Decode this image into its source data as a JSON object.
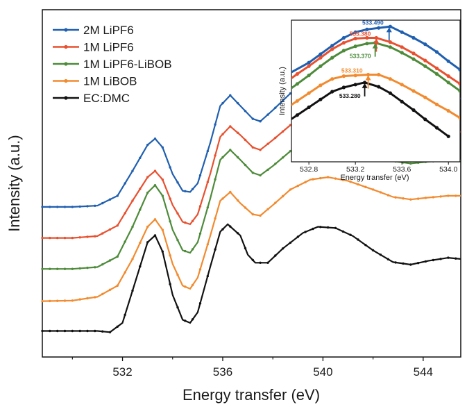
{
  "colors": {
    "2M LiPF6": "#1f5fb0",
    "1M LiPF6": "#e8502f",
    "1M LiPF6-LiBOB": "#4d8b3a",
    "1M LiBOB": "#f28a2e",
    "EC:DMC": "#111111"
  },
  "chart_data": [
    {
      "type": "line",
      "title": "",
      "xlabel": "Energy transfer (eV)",
      "ylabel": "Intensity (a.u.)",
      "xlim": [
        528.8,
        545.5
      ],
      "ylim": [
        0,
        5.6
      ],
      "x_ticks": [
        532,
        536,
        540,
        544
      ],
      "x_tick_labels": [
        "532",
        "536",
        "540",
        "544"
      ],
      "y_tick_labels": [],
      "grid": false,
      "legend": "top-left",
      "series": [
        {
          "name": "2M LiPF6",
          "points": [
            [
              528.8,
              2.42
            ],
            [
              530,
              2.42
            ],
            [
              531,
              2.44
            ],
            [
              531.8,
              2.6
            ],
            [
              532.4,
              3.0
            ],
            [
              533,
              3.42
            ],
            [
              533.3,
              3.52
            ],
            [
              533.6,
              3.38
            ],
            [
              534,
              2.95
            ],
            [
              534.4,
              2.68
            ],
            [
              534.7,
              2.66
            ],
            [
              535,
              2.8
            ],
            [
              535.5,
              3.45
            ],
            [
              535.9,
              4.05
            ],
            [
              536.3,
              4.22
            ],
            [
              536.7,
              4.05
            ],
            [
              537.2,
              3.84
            ],
            [
              537.5,
              3.8
            ],
            [
              538,
              3.98
            ],
            [
              538.7,
              4.25
            ],
            [
              539.5,
              4.42
            ],
            [
              540.2,
              4.48
            ],
            [
              541,
              4.42
            ],
            [
              542,
              4.27
            ],
            [
              542.8,
              4.12
            ],
            [
              543.5,
              4.06
            ],
            [
              544.2,
              4.12
            ],
            [
              545,
              4.17
            ],
            [
              545.5,
              4.17
            ]
          ]
        },
        {
          "name": "1M LiPF6",
          "points": [
            [
              528.8,
              1.92
            ],
            [
              530,
              1.92
            ],
            [
              531,
              1.95
            ],
            [
              531.8,
              2.12
            ],
            [
              532.4,
              2.52
            ],
            [
              533,
              2.9
            ],
            [
              533.3,
              3.0
            ],
            [
              533.6,
              2.86
            ],
            [
              534,
              2.45
            ],
            [
              534.4,
              2.18
            ],
            [
              534.7,
              2.14
            ],
            [
              535,
              2.3
            ],
            [
              535.5,
              2.95
            ],
            [
              535.9,
              3.55
            ],
            [
              536.3,
              3.72
            ],
            [
              536.7,
              3.58
            ],
            [
              537.2,
              3.38
            ],
            [
              537.5,
              3.34
            ],
            [
              538,
              3.5
            ],
            [
              538.7,
              3.74
            ],
            [
              539.5,
              3.9
            ],
            [
              540.2,
              3.93
            ],
            [
              541,
              3.86
            ],
            [
              542,
              3.72
            ],
            [
              542.8,
              3.6
            ],
            [
              543.5,
              3.56
            ],
            [
              544.2,
              3.6
            ],
            [
              545,
              3.63
            ],
            [
              545.5,
              3.63
            ]
          ]
        },
        {
          "name": "1M LiPF6-LiBOB",
          "points": [
            [
              528.8,
              1.42
            ],
            [
              530,
              1.42
            ],
            [
              531,
              1.45
            ],
            [
              531.8,
              1.62
            ],
            [
              532.4,
              2.1
            ],
            [
              533,
              2.65
            ],
            [
              533.3,
              2.77
            ],
            [
              533.6,
              2.6
            ],
            [
              534,
              2.05
            ],
            [
              534.4,
              1.72
            ],
            [
              534.7,
              1.68
            ],
            [
              535,
              1.85
            ],
            [
              535.5,
              2.55
            ],
            [
              535.9,
              3.18
            ],
            [
              536.3,
              3.34
            ],
            [
              536.7,
              3.18
            ],
            [
              537.2,
              2.97
            ],
            [
              537.5,
              2.93
            ],
            [
              538,
              3.08
            ],
            [
              538.7,
              3.32
            ],
            [
              539.5,
              3.47
            ],
            [
              540.2,
              3.5
            ],
            [
              541,
              3.42
            ],
            [
              542,
              3.28
            ],
            [
              542.8,
              3.16
            ],
            [
              543.5,
              3.12
            ],
            [
              544.2,
              3.15
            ],
            [
              545,
              3.17
            ],
            [
              545.5,
              3.17
            ]
          ]
        },
        {
          "name": "1M LiBOB",
          "points": [
            [
              528.8,
              0.9
            ],
            [
              530,
              0.91
            ],
            [
              531,
              0.97
            ],
            [
              531.8,
              1.15
            ],
            [
              532.4,
              1.58
            ],
            [
              533,
              2.1
            ],
            [
              533.3,
              2.22
            ],
            [
              533.6,
              2.05
            ],
            [
              534,
              1.5
            ],
            [
              534.4,
              1.15
            ],
            [
              534.7,
              1.1
            ],
            [
              535,
              1.28
            ],
            [
              535.5,
              1.95
            ],
            [
              535.9,
              2.52
            ],
            [
              536.3,
              2.66
            ],
            [
              536.7,
              2.48
            ],
            [
              537.2,
              2.3
            ],
            [
              537.5,
              2.28
            ],
            [
              538,
              2.45
            ],
            [
              538.7,
              2.7
            ],
            [
              539.5,
              2.86
            ],
            [
              540.2,
              2.9
            ],
            [
              541,
              2.84
            ],
            [
              542,
              2.7
            ],
            [
              542.8,
              2.58
            ],
            [
              543.5,
              2.54
            ],
            [
              544.2,
              2.57
            ],
            [
              545,
              2.6
            ],
            [
              545.5,
              2.6
            ]
          ]
        },
        {
          "name": "EC:DMC",
          "points": [
            [
              528.8,
              0.42
            ],
            [
              530,
              0.42
            ],
            [
              531,
              0.42
            ],
            [
              531.5,
              0.4
            ],
            [
              532,
              0.55
            ],
            [
              532.5,
              1.2
            ],
            [
              533,
              1.85
            ],
            [
              533.3,
              1.96
            ],
            [
              533.6,
              1.7
            ],
            [
              534,
              1.0
            ],
            [
              534.4,
              0.6
            ],
            [
              534.7,
              0.55
            ],
            [
              535,
              0.72
            ],
            [
              535.5,
              1.45
            ],
            [
              535.9,
              2.02
            ],
            [
              536.2,
              2.14
            ],
            [
              536.7,
              1.96
            ],
            [
              537,
              1.65
            ],
            [
              537.3,
              1.52
            ],
            [
              537.8,
              1.52
            ],
            [
              538.4,
              1.75
            ],
            [
              539.2,
              2.0
            ],
            [
              539.8,
              2.1
            ],
            [
              540.5,
              2.08
            ],
            [
              541.2,
              1.95
            ],
            [
              542,
              1.72
            ],
            [
              542.8,
              1.53
            ],
            [
              543.5,
              1.49
            ],
            [
              544.2,
              1.55
            ],
            [
              545,
              1.6
            ],
            [
              545.5,
              1.58
            ]
          ]
        }
      ]
    },
    {
      "type": "line",
      "title": "",
      "xlabel": "Energy transfer (eV)",
      "ylabel": "Intensity (a.u.)",
      "xlim": [
        532.65,
        534.1
      ],
      "ylim": [
        0,
        10
      ],
      "x_ticks": [
        532.8,
        533.2,
        533.6,
        534.0
      ],
      "x_tick_labels": [
        "532.8",
        "533.2",
        "533.6",
        "534.0"
      ],
      "grid": false,
      "series": [
        {
          "name": "2M LiPF6",
          "points": [
            [
              532.6,
              6.1
            ],
            [
              532.8,
              7.0
            ],
            [
              532.9,
              7.6
            ],
            [
              533.0,
              8.2
            ],
            [
              533.1,
              8.75
            ],
            [
              533.2,
              9.15
            ],
            [
              533.3,
              9.35
            ],
            [
              533.4,
              9.45
            ],
            [
              533.5,
              9.55
            ],
            [
              533.6,
              9.15
            ],
            [
              533.7,
              8.75
            ],
            [
              533.8,
              8.3
            ],
            [
              533.9,
              7.75
            ],
            [
              534.0,
              7.1
            ],
            [
              534.1,
              6.5
            ]
          ]
        },
        {
          "name": "1M LiPF6",
          "points": [
            [
              532.6,
              5.6
            ],
            [
              532.7,
              6.2
            ],
            [
              532.8,
              6.75
            ],
            [
              532.9,
              7.35
            ],
            [
              533.0,
              7.95
            ],
            [
              533.1,
              8.4
            ],
            [
              533.2,
              8.7
            ],
            [
              533.3,
              8.75
            ],
            [
              533.38,
              8.75
            ],
            [
              533.5,
              8.45
            ],
            [
              533.6,
              8.1
            ],
            [
              533.7,
              7.65
            ],
            [
              533.8,
              7.15
            ],
            [
              533.9,
              6.6
            ],
            [
              534.0,
              6.05
            ],
            [
              534.1,
              5.5
            ]
          ]
        },
        {
          "name": "1M LiPF6-LiBOB",
          "points": [
            [
              532.6,
              4.9
            ],
            [
              532.7,
              5.5
            ],
            [
              532.8,
              6.1
            ],
            [
              532.9,
              6.75
            ],
            [
              533.0,
              7.35
            ],
            [
              533.1,
              7.85
            ],
            [
              533.2,
              8.15
            ],
            [
              533.3,
              8.35
            ],
            [
              533.37,
              8.4
            ],
            [
              533.5,
              8.1
            ],
            [
              533.6,
              7.7
            ],
            [
              533.7,
              7.25
            ],
            [
              533.8,
              6.75
            ],
            [
              533.9,
              6.2
            ],
            [
              534.0,
              5.6
            ],
            [
              534.1,
              5.0
            ]
          ]
        },
        {
          "name": "1M LiBOB",
          "points": [
            [
              532.6,
              3.75
            ],
            [
              532.7,
              4.3
            ],
            [
              532.8,
              4.85
            ],
            [
              532.9,
              5.4
            ],
            [
              533.0,
              5.85
            ],
            [
              533.1,
              6.05
            ],
            [
              533.2,
              6.1
            ],
            [
              533.31,
              6.15
            ],
            [
              533.4,
              6.15
            ],
            [
              533.5,
              5.85
            ],
            [
              533.6,
              5.45
            ],
            [
              533.7,
              5.0
            ],
            [
              533.8,
              4.55
            ],
            [
              533.9,
              4.05
            ],
            [
              534.0,
              3.6
            ],
            [
              534.1,
              3.1
            ]
          ]
        },
        {
          "name": "EC:DMC",
          "points": [
            [
              532.6,
              2.75
            ],
            [
              532.7,
              3.3
            ],
            [
              532.8,
              3.85
            ],
            [
              532.9,
              4.4
            ],
            [
              533.0,
              4.95
            ],
            [
              533.1,
              5.25
            ],
            [
              533.2,
              5.45
            ],
            [
              533.28,
              5.6
            ],
            [
              533.4,
              5.3
            ],
            [
              533.5,
              4.85
            ],
            [
              533.6,
              4.25
            ],
            [
              533.7,
              3.65
            ],
            [
              533.8,
              3.0
            ],
            [
              533.9,
              2.4
            ],
            [
              534.0,
              1.8
            ]
          ]
        }
      ],
      "annotations": [
        {
          "series": "2M LiPF6",
          "label": "533.490",
          "x": 533.49
        },
        {
          "series": "1M LiPF6",
          "label": "533.380",
          "x": 533.38
        },
        {
          "series": "1M LiPF6-LiBOB",
          "label": "533.370",
          "x": 533.37
        },
        {
          "series": "1M LiBOB",
          "label": "533.310",
          "x": 533.31
        },
        {
          "series": "EC:DMC",
          "label": "533.280",
          "x": 533.28
        }
      ]
    }
  ]
}
